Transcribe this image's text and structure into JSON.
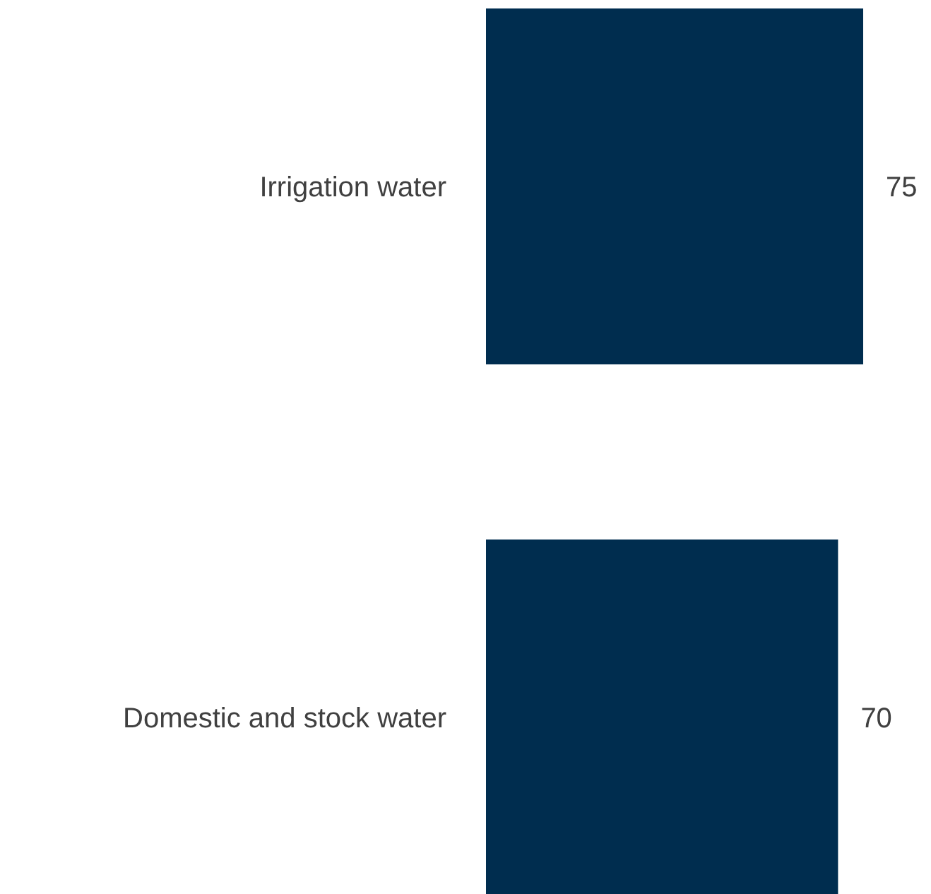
{
  "chart_data": {
    "type": "bar",
    "orientation": "horizontal",
    "categories": [
      "Irrigation water",
      "Domestic and stock water"
    ],
    "values": [
      75,
      70
    ],
    "color": "#002d4f",
    "data_labels": true
  }
}
